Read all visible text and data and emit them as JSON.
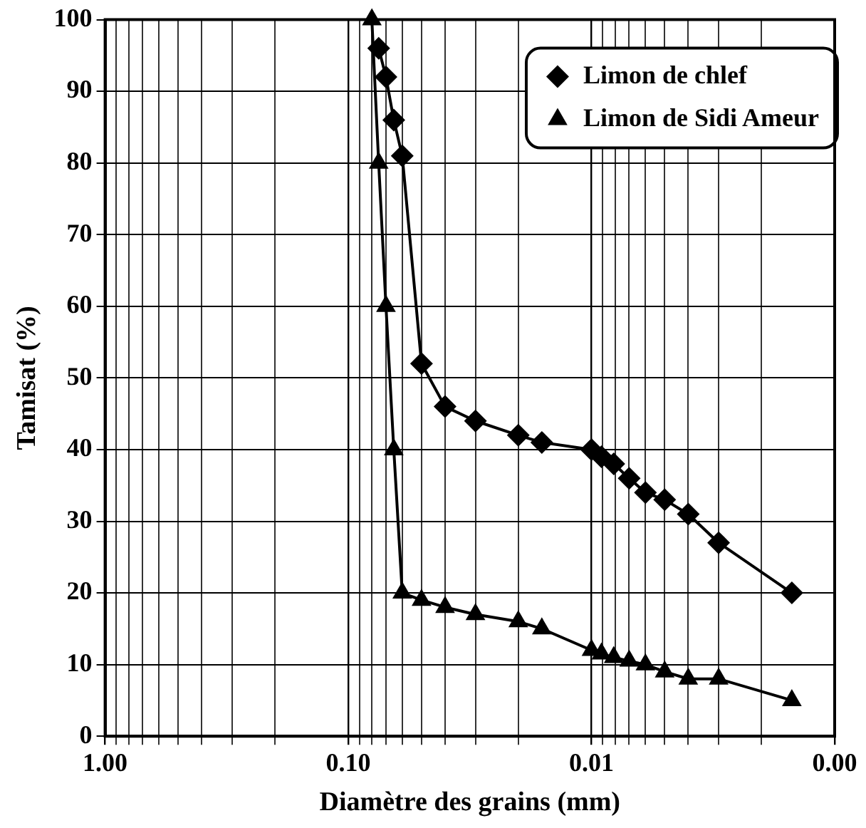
{
  "chart_data": {
    "type": "line",
    "xlabel": "Diamètre des grains (mm)",
    "ylabel": "Tamisat (%)",
    "log": "x",
    "xlim": [
      1,
      0.001
    ],
    "xticks": [
      {
        "value": 1,
        "label": "1.00"
      },
      {
        "value": 0.9,
        "label": null
      },
      {
        "value": 0.8,
        "label": null
      },
      {
        "value": 0.7,
        "label": null
      },
      {
        "value": 0.6,
        "label": null
      },
      {
        "value": 0.5,
        "label": null
      },
      {
        "value": 0.4,
        "label": null
      },
      {
        "value": 0.3,
        "label": null
      },
      {
        "value": 0.2,
        "label": null
      },
      {
        "value": 0.1,
        "label": "0.10"
      },
      {
        "value": 0.09,
        "label": null
      },
      {
        "value": 0.08,
        "label": null
      },
      {
        "value": 0.07,
        "label": null
      },
      {
        "value": 0.06,
        "label": null
      },
      {
        "value": 0.05,
        "label": null
      },
      {
        "value": 0.04,
        "label": null
      },
      {
        "value": 0.03,
        "label": null
      },
      {
        "value": 0.02,
        "label": null
      },
      {
        "value": 0.01,
        "label": "0.01"
      },
      {
        "value": 0.009,
        "label": null
      },
      {
        "value": 0.008,
        "label": null
      },
      {
        "value": 0.007,
        "label": null
      },
      {
        "value": 0.006,
        "label": null
      },
      {
        "value": 0.005,
        "label": null
      },
      {
        "value": 0.004,
        "label": null
      },
      {
        "value": 0.003,
        "label": null
      },
      {
        "value": 0.002,
        "label": null
      },
      {
        "value": 0.001,
        "label": "0.00"
      }
    ],
    "ylim": [
      0,
      100
    ],
    "yticks": [
      0,
      10,
      20,
      30,
      40,
      50,
      60,
      70,
      80,
      90,
      100
    ],
    "grid": true,
    "legend": "top right",
    "line_style": "solid",
    "series": [
      {
        "name": "Limon de chlef",
        "color": "#000000",
        "marker": "diamond",
        "x": [
          0.075,
          0.07,
          0.065,
          0.06,
          0.05,
          0.04,
          0.03,
          0.02,
          0.016,
          0.01,
          0.0091,
          0.0081,
          0.007,
          0.006,
          0.005,
          0.004,
          0.003,
          0.0015
        ],
        "values": [
          96,
          92,
          86,
          81,
          52,
          46,
          44,
          42,
          41,
          40,
          39,
          38,
          36,
          34,
          33,
          31,
          27,
          20
        ]
      },
      {
        "name": "Limon de Sidi Ameur",
        "color": "#000000",
        "marker": "triangle",
        "x": [
          0.08,
          0.075,
          0.07,
          0.065,
          0.06,
          0.05,
          0.04,
          0.03,
          0.02,
          0.016,
          0.01,
          0.0091,
          0.0081,
          0.007,
          0.006,
          0.005,
          0.004,
          0.003,
          0.0015
        ],
        "values": [
          100,
          80,
          60,
          40,
          20,
          19,
          18,
          17,
          16,
          15,
          12,
          11.5,
          11,
          10.5,
          10,
          9,
          8,
          8,
          5
        ]
      }
    ]
  }
}
